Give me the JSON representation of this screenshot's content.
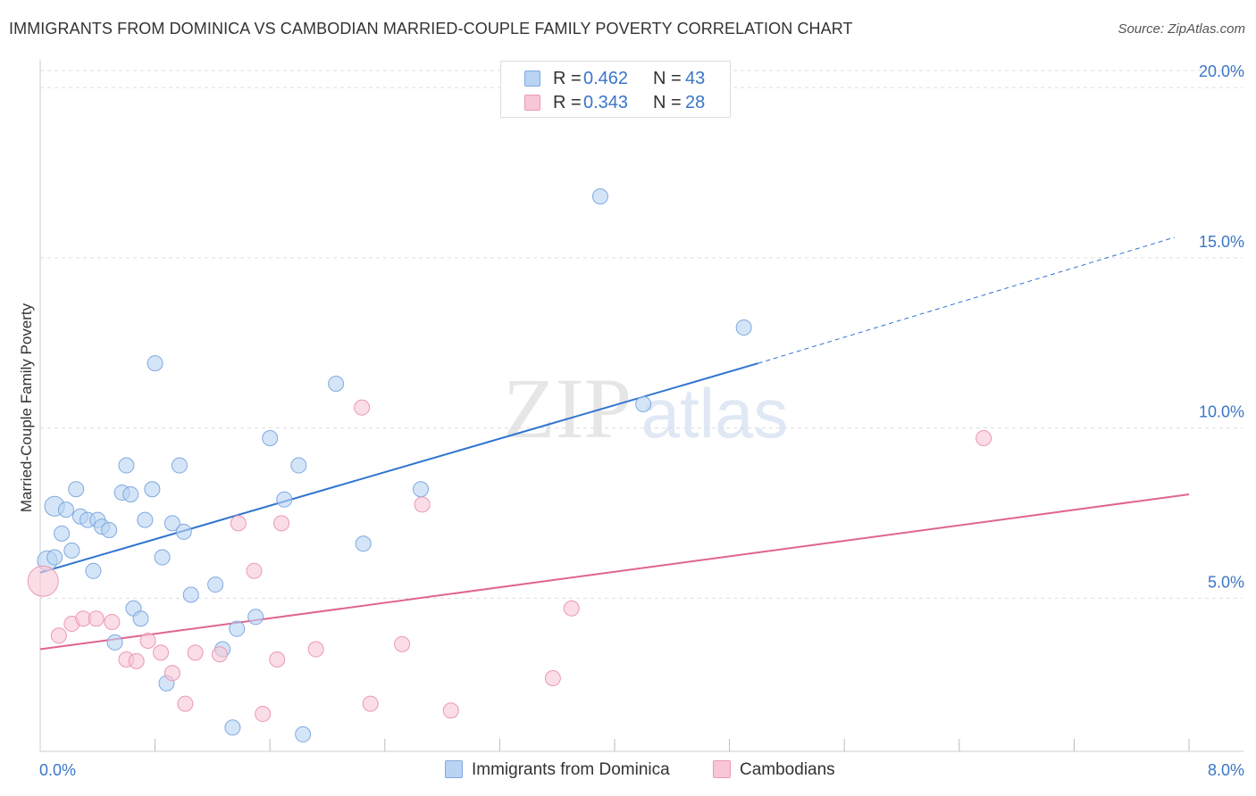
{
  "title": "IMMIGRANTS FROM DOMINICA VS CAMBODIAN MARRIED-COUPLE FAMILY POVERTY CORRELATION CHART",
  "source": "Source: ZipAtlas.com",
  "watermark": {
    "zip": "ZIP",
    "atlas": "atlas"
  },
  "legend_top": [
    {
      "r_label": "R = ",
      "r_value": "0.462",
      "n_label": "N = ",
      "n_value": "43"
    },
    {
      "r_label": "R = ",
      "r_value": "0.343",
      "n_label": "N = ",
      "n_value": "28"
    }
  ],
  "colors": {
    "blue_fill": "#b9d3f3",
    "blue_stroke": "#7fa9df",
    "blue_line": "#2f74d0",
    "pink_fill": "#f8c6d6",
    "pink_stroke": "#eb98b4",
    "pink_line": "#e0648f",
    "axis_label": "#3a76c9",
    "grid": "#dddddd"
  },
  "chart_data": {
    "type": "scatter",
    "title": "IMMIGRANTS FROM DOMINICA VS CAMBODIAN MARRIED-COUPLE FAMILY POVERTY CORRELATION CHART",
    "xlabel": "",
    "ylabel": "Married-Couple Family Poverty",
    "xlim": [
      0,
      8
    ],
    "ylim": [
      0.5,
      20.5
    ],
    "x_tick_labels": [
      {
        "value": 0,
        "label": "0.0%"
      },
      {
        "value": 8,
        "label": "8.0%"
      }
    ],
    "y_tick_labels": [
      {
        "value": 5,
        "label": "5.0%"
      },
      {
        "value": 10,
        "label": "10.0%"
      },
      {
        "value": 15,
        "label": "15.0%"
      },
      {
        "value": 20,
        "label": "20.0%"
      }
    ],
    "y_gridlines": [
      5,
      10,
      15,
      20
    ],
    "x_minor_ticks": [
      0.8,
      1.6,
      2.4,
      3.2,
      4.0,
      4.8,
      5.6,
      6.4,
      7.2,
      8.0
    ],
    "series": [
      {
        "name": "Immigrants from Dominica",
        "color": "blue",
        "r": "0.462",
        "n": "43",
        "trend": {
          "x0": 0.0,
          "y0": 5.75,
          "x1": 5.0,
          "y1": 11.9,
          "dash_to_x": 7.9,
          "dash_to_y": 15.6
        },
        "points": [
          {
            "x": 0.05,
            "y": 6.1,
            "s": 1.3
          },
          {
            "x": 0.1,
            "y": 6.2,
            "s": 1.0
          },
          {
            "x": 0.1,
            "y": 7.7,
            "s": 1.3
          },
          {
            "x": 0.15,
            "y": 6.9,
            "s": 1.0
          },
          {
            "x": 0.18,
            "y": 7.6,
            "s": 1.0
          },
          {
            "x": 0.22,
            "y": 6.4,
            "s": 1.0
          },
          {
            "x": 0.25,
            "y": 8.2,
            "s": 1.0
          },
          {
            "x": 0.28,
            "y": 7.4,
            "s": 1.0
          },
          {
            "x": 0.33,
            "y": 7.3,
            "s": 1.0
          },
          {
            "x": 0.37,
            "y": 5.8,
            "s": 1.0
          },
          {
            "x": 0.4,
            "y": 7.3,
            "s": 1.0
          },
          {
            "x": 0.43,
            "y": 7.1,
            "s": 1.0
          },
          {
            "x": 0.48,
            "y": 7.0,
            "s": 1.0
          },
          {
            "x": 0.52,
            "y": 3.7,
            "s": 1.0
          },
          {
            "x": 0.57,
            "y": 8.1,
            "s": 1.0
          },
          {
            "x": 0.6,
            "y": 8.9,
            "s": 1.0
          },
          {
            "x": 0.63,
            "y": 8.05,
            "s": 1.0
          },
          {
            "x": 0.65,
            "y": 4.7,
            "s": 1.0
          },
          {
            "x": 0.7,
            "y": 4.4,
            "s": 1.0
          },
          {
            "x": 0.73,
            "y": 7.3,
            "s": 1.0
          },
          {
            "x": 0.78,
            "y": 8.2,
            "s": 1.0
          },
          {
            "x": 0.8,
            "y": 11.9,
            "s": 1.0
          },
          {
            "x": 0.85,
            "y": 6.2,
            "s": 1.0
          },
          {
            "x": 0.88,
            "y": 2.5,
            "s": 1.0
          },
          {
            "x": 0.92,
            "y": 7.2,
            "s": 1.0
          },
          {
            "x": 0.97,
            "y": 8.9,
            "s": 1.0
          },
          {
            "x": 1.0,
            "y": 6.95,
            "s": 1.0
          },
          {
            "x": 1.05,
            "y": 5.1,
            "s": 1.0
          },
          {
            "x": 1.22,
            "y": 5.4,
            "s": 1.0
          },
          {
            "x": 1.27,
            "y": 3.5,
            "s": 1.0
          },
          {
            "x": 1.34,
            "y": 1.2,
            "s": 1.0
          },
          {
            "x": 1.37,
            "y": 4.1,
            "s": 1.0
          },
          {
            "x": 1.5,
            "y": 4.45,
            "s": 1.0
          },
          {
            "x": 1.6,
            "y": 9.7,
            "s": 1.0
          },
          {
            "x": 1.7,
            "y": 7.9,
            "s": 1.0
          },
          {
            "x": 1.8,
            "y": 8.9,
            "s": 1.0
          },
          {
            "x": 1.83,
            "y": 1.0,
            "s": 1.0
          },
          {
            "x": 2.06,
            "y": 11.3,
            "s": 1.0
          },
          {
            "x": 2.25,
            "y": 6.6,
            "s": 1.0
          },
          {
            "x": 2.65,
            "y": 8.2,
            "s": 1.0
          },
          {
            "x": 3.9,
            "y": 16.8,
            "s": 1.0
          },
          {
            "x": 4.2,
            "y": 10.7,
            "s": 1.0
          },
          {
            "x": 4.9,
            "y": 12.95,
            "s": 1.0
          }
        ]
      },
      {
        "name": "Cambodians",
        "color": "pink",
        "r": "0.343",
        "n": "28",
        "trend": {
          "x0": 0.0,
          "y0": 3.5,
          "x1": 8.0,
          "y1": 8.05
        },
        "points": [
          {
            "x": 0.02,
            "y": 5.5,
            "s": 2.0
          },
          {
            "x": 0.13,
            "y": 3.9,
            "s": 1.0
          },
          {
            "x": 0.22,
            "y": 4.25,
            "s": 1.0
          },
          {
            "x": 0.3,
            "y": 4.4,
            "s": 1.0
          },
          {
            "x": 0.39,
            "y": 4.4,
            "s": 1.0
          },
          {
            "x": 0.5,
            "y": 4.3,
            "s": 1.0
          },
          {
            "x": 0.6,
            "y": 3.2,
            "s": 1.0
          },
          {
            "x": 0.67,
            "y": 3.15,
            "s": 1.0
          },
          {
            "x": 0.75,
            "y": 3.75,
            "s": 1.0
          },
          {
            "x": 0.84,
            "y": 3.4,
            "s": 1.0
          },
          {
            "x": 0.92,
            "y": 2.8,
            "s": 1.0
          },
          {
            "x": 1.01,
            "y": 1.9,
            "s": 1.0
          },
          {
            "x": 1.08,
            "y": 3.4,
            "s": 1.0
          },
          {
            "x": 1.25,
            "y": 3.35,
            "s": 1.0
          },
          {
            "x": 1.38,
            "y": 7.2,
            "s": 1.0
          },
          {
            "x": 1.49,
            "y": 5.8,
            "s": 1.0
          },
          {
            "x": 1.55,
            "y": 1.6,
            "s": 1.0
          },
          {
            "x": 1.65,
            "y": 3.2,
            "s": 1.0
          },
          {
            "x": 1.68,
            "y": 7.2,
            "s": 1.0
          },
          {
            "x": 1.92,
            "y": 3.5,
            "s": 1.0
          },
          {
            "x": 2.24,
            "y": 10.6,
            "s": 1.0
          },
          {
            "x": 2.3,
            "y": 1.9,
            "s": 1.0
          },
          {
            "x": 2.52,
            "y": 3.65,
            "s": 1.0
          },
          {
            "x": 2.66,
            "y": 7.75,
            "s": 1.0
          },
          {
            "x": 2.86,
            "y": 1.7,
            "s": 1.0
          },
          {
            "x": 3.57,
            "y": 2.65,
            "s": 1.0
          },
          {
            "x": 3.7,
            "y": 4.7,
            "s": 1.0
          },
          {
            "x": 6.57,
            "y": 9.7,
            "s": 1.0
          }
        ]
      }
    ]
  },
  "legend_bottom": [
    {
      "label": "Immigrants from Dominica"
    },
    {
      "label": "Cambodians"
    }
  ]
}
